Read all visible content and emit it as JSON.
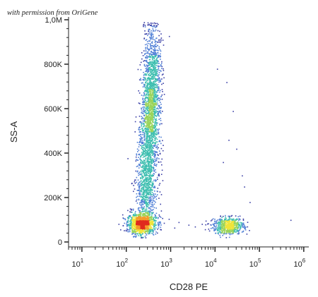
{
  "chart_data": {
    "type": "scatter",
    "title": "",
    "credit": "with permission from OriGene",
    "xlabel": "CD28 PE",
    "ylabel": "SS-A",
    "x_scale": "log",
    "xlim": [
      5,
      1300000
    ],
    "ylim": [
      0,
      1000000
    ],
    "x_ticks": [
      {
        "value": 10,
        "base": "10",
        "exp": "1"
      },
      {
        "value": 100,
        "base": "10",
        "exp": "2"
      },
      {
        "value": 1000,
        "base": "10",
        "exp": "3"
      },
      {
        "value": 10000,
        "base": "10",
        "exp": "4"
      },
      {
        "value": 100000,
        "base": "10",
        "exp": "5"
      },
      {
        "value": 1000000,
        "base": "10",
        "exp": "6"
      }
    ],
    "y_ticks": [
      {
        "value": 0,
        "label": "0"
      },
      {
        "value": 200000,
        "label": "200K"
      },
      {
        "value": 400000,
        "label": "400K"
      },
      {
        "value": 600000,
        "label": "600K"
      },
      {
        "value": 800000,
        "label": "800K"
      },
      {
        "value": 1000000,
        "label": "1,0M"
      }
    ],
    "grid": false,
    "legend": "none",
    "density_colors": [
      "#3a3fa6",
      "#4f7fd6",
      "#3fbfb0",
      "#9ad45a",
      "#f0e43a",
      "#f59a2a",
      "#e02a1e"
    ],
    "populations": [
      {
        "x_center": 220,
        "x_spread_decades": 0.16,
        "y_center": 85000,
        "y_spread": 24000,
        "count": 1200
      },
      {
        "x_center": 380,
        "x_spread_decades": 0.1,
        "y_center": 800000,
        "y_spread": 100000,
        "count": 600
      },
      {
        "x_center": 350,
        "x_spread_decades": 0.1,
        "y_center": 600000,
        "y_spread": 90000,
        "count": 900
      },
      {
        "x_center": 300,
        "x_spread_decades": 0.11,
        "y_center": 400000,
        "y_spread": 90000,
        "count": 700
      },
      {
        "x_center": 270,
        "x_spread_decades": 0.12,
        "y_center": 230000,
        "y_spread": 70000,
        "count": 500
      },
      {
        "x_center": 20000,
        "x_spread_decades": 0.17,
        "y_center": 75000,
        "y_spread": 18000,
        "count": 650
      }
    ],
    "sparse_points": [
      {
        "x": 2500,
        "y": 78000
      },
      {
        "x": 3500,
        "y": 70000
      },
      {
        "x": 5000,
        "y": 82000
      },
      {
        "x": 1500,
        "y": 90000
      },
      {
        "x": 25000,
        "y": 590000
      },
      {
        "x": 20000,
        "y": 460000
      },
      {
        "x": 15000,
        "y": 360000
      },
      {
        "x": 30000,
        "y": 420000
      },
      {
        "x": 40000,
        "y": 300000
      },
      {
        "x": 18000,
        "y": 720000
      },
      {
        "x": 11000,
        "y": 780000
      },
      {
        "x": 500000,
        "y": 100000
      },
      {
        "x": 45000,
        "y": 250000
      },
      {
        "x": 1200,
        "y": 65000
      },
      {
        "x": 7000,
        "y": 60000
      },
      {
        "x": 60000,
        "y": 180000
      }
    ]
  }
}
